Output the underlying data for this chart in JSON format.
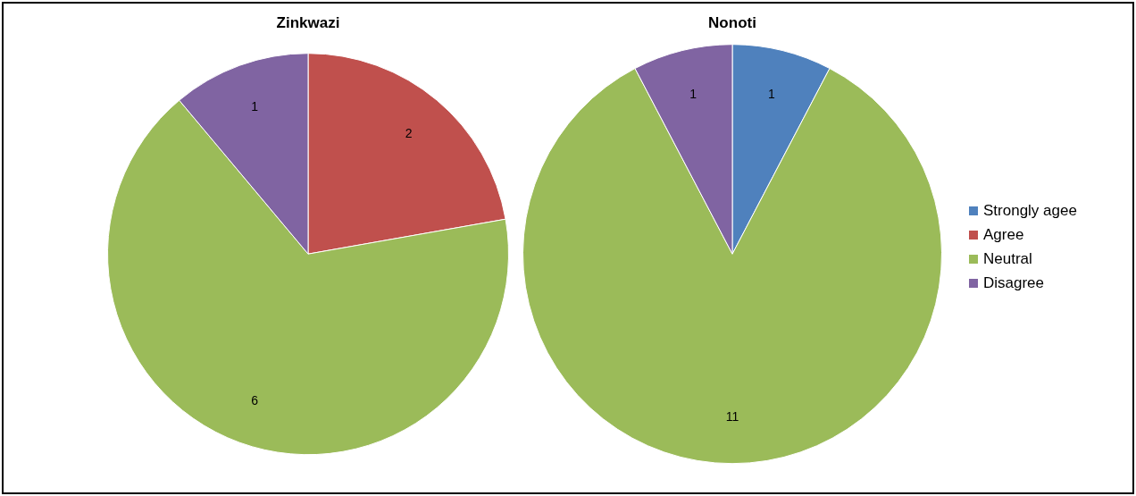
{
  "chart_data": [
    {
      "type": "pie",
      "title": "Zinkwazi",
      "categories": [
        null,
        null,
        null,
        null
      ],
      "values": [
        0,
        2,
        6,
        1
      ],
      "colors": [
        "#4f81bd",
        "#c0504d",
        "#9bbb59",
        "#8064a2"
      ],
      "value_labels": [
        null,
        "2",
        "6",
        "1"
      ],
      "legend": false
    },
    {
      "type": "pie",
      "title": "Nonoti",
      "categories": [
        "Strongly agee",
        "Agree",
        "Neutral",
        "Disagree"
      ],
      "values": [
        1,
        0,
        11,
        1
      ],
      "colors": [
        "#4f81bd",
        "#c0504d",
        "#9bbb59",
        "#8064a2"
      ],
      "value_labels": [
        "1",
        null,
        "11",
        "1"
      ],
      "legend": "right"
    }
  ]
}
